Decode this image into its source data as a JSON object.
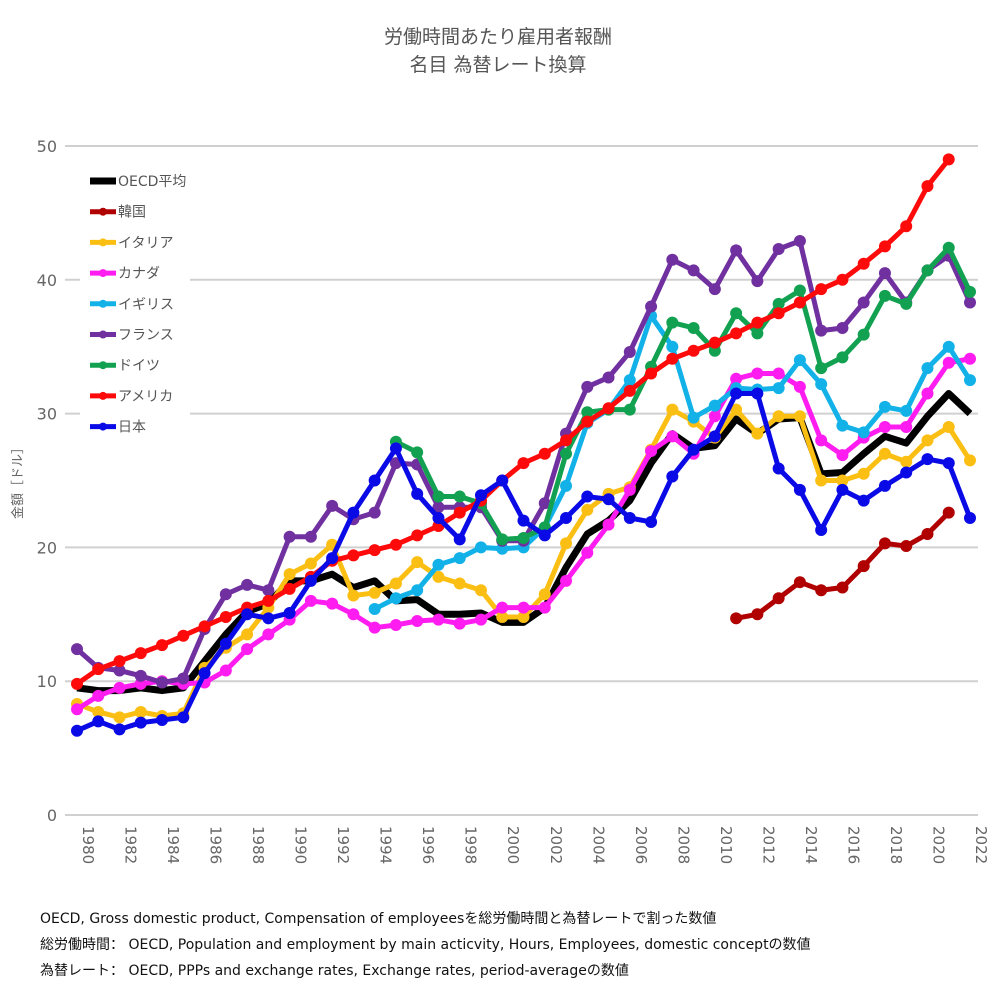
{
  "chart_data": {
    "type": "line",
    "title": "労働時間あたり雇用者報酬",
    "subtitle": "名目 為替レート換算",
    "ylabel": "金額［ドル］",
    "xlabel": "",
    "ylim": [
      0,
      50
    ],
    "yticks": [
      0,
      10,
      20,
      30,
      40,
      50
    ],
    "xlim": [
      1980,
      2022
    ],
    "xticks": [
      1980,
      1982,
      1984,
      1986,
      1988,
      1990,
      1992,
      1994,
      1996,
      1998,
      2000,
      2002,
      2004,
      2006,
      2008,
      2010,
      2012,
      2014,
      2016,
      2018,
      2020,
      2022
    ],
    "grid": true,
    "legend": "top-left",
    "series": [
      {
        "name": "OECD平均",
        "color": "#000000",
        "markers": false,
        "start": 1980,
        "values": [
          9.5,
          9.3,
          9.3,
          9.5,
          9.3,
          9.5,
          11.5,
          13.5,
          15.2,
          15.8,
          17.5,
          17.5,
          18.0,
          17.0,
          17.5,
          16.0,
          16.1,
          15.0,
          15.0,
          15.1,
          14.4,
          14.4,
          15.5,
          18.5,
          21.0,
          22.0,
          23.5,
          26.3,
          28.5,
          27.4,
          27.6,
          29.6,
          28.5,
          29.6,
          29.7,
          25.5,
          25.6,
          27.0,
          28.3,
          27.8,
          29.8,
          31.5,
          30.0
        ]
      },
      {
        "name": "韓国",
        "color": "#b00000",
        "markers": true,
        "start": 2011,
        "values": [
          14.7,
          15.0,
          16.2,
          17.4,
          16.8,
          17.0,
          18.6,
          20.3,
          20.1,
          21.0,
          22.6
        ]
      },
      {
        "name": "イタリア",
        "color": "#fbbf14",
        "markers": true,
        "start": 1980,
        "values": [
          8.3,
          7.7,
          7.3,
          7.7,
          7.4,
          7.6,
          11.0,
          12.5,
          13.5,
          15.5,
          18.0,
          18.8,
          20.2,
          16.4,
          16.6,
          17.3,
          18.9,
          17.8,
          17.3,
          16.8,
          14.8,
          14.8,
          16.5,
          20.3,
          22.8,
          24.0,
          24.5,
          27.3,
          30.3,
          29.4,
          28.2,
          30.3,
          28.5,
          29.8,
          29.8,
          25.0,
          25.0,
          25.5,
          27.0,
          26.4,
          28.0,
          29.0,
          26.5
        ]
      },
      {
        "name": "カナダ",
        "color": "#ff1cf0",
        "markers": true,
        "start": 1980,
        "values": [
          7.9,
          8.9,
          9.5,
          9.8,
          10.0,
          9.8,
          9.9,
          10.8,
          12.4,
          13.5,
          14.6,
          16.0,
          15.8,
          15.0,
          14.0,
          14.2,
          14.5,
          14.6,
          14.3,
          14.6,
          15.5,
          15.5,
          15.5,
          17.5,
          19.6,
          21.7,
          24.3,
          27.2,
          28.3,
          27.0,
          29.8,
          32.6,
          33.0,
          33.0,
          32.0,
          28.0,
          26.9,
          28.2,
          29.0,
          29.0,
          31.5,
          33.8,
          34.1
        ]
      },
      {
        "name": "イギリス",
        "color": "#12b2e8",
        "markers": true,
        "start": 1994,
        "values": [
          15.4,
          16.2,
          16.8,
          18.7,
          19.2,
          20.0,
          19.9,
          20.0,
          21.5,
          24.6,
          29.3,
          30.3,
          32.5,
          37.3,
          35.0,
          29.7,
          30.6,
          31.9,
          31.8,
          31.9,
          34.0,
          32.2,
          29.1,
          28.6,
          30.5,
          30.2,
          33.4,
          35.0,
          32.5
        ]
      },
      {
        "name": "フランス",
        "color": "#7030a0",
        "markers": true,
        "start": 1980,
        "values": [
          12.4,
          11.0,
          10.8,
          10.4,
          9.9,
          10.2,
          13.9,
          16.5,
          17.2,
          16.8,
          20.8,
          20.8,
          23.1,
          22.1,
          22.6,
          26.3,
          26.2,
          23.0,
          23.0,
          23.0,
          20.5,
          20.5,
          23.3,
          28.5,
          32.0,
          32.7,
          34.6,
          38.0,
          41.5,
          40.7,
          39.3,
          42.2,
          39.9,
          42.3,
          42.9,
          36.2,
          36.4,
          38.3,
          40.5,
          38.3,
          40.7,
          41.8,
          38.3
        ]
      },
      {
        "name": "ドイツ",
        "color": "#12a150",
        "markers": true,
        "start": 1995,
        "values": [
          27.9,
          27.1,
          23.8,
          23.8,
          23.3,
          20.6,
          20.7,
          21.5,
          27.0,
          30.1,
          30.3,
          30.3,
          33.5,
          36.8,
          36.4,
          34.7,
          37.5,
          36.0,
          38.2,
          39.2,
          33.4,
          34.2,
          35.9,
          38.8,
          38.2,
          40.7,
          42.4,
          39.1
        ]
      },
      {
        "name": "アメリカ",
        "color": "#ff0a0a",
        "markers": true,
        "start": 1980,
        "values": [
          9.8,
          10.9,
          11.5,
          12.1,
          12.7,
          13.4,
          14.1,
          14.8,
          15.5,
          16.0,
          16.9,
          17.8,
          19.0,
          19.4,
          19.8,
          20.2,
          20.9,
          21.6,
          22.6,
          23.5,
          25.0,
          26.3,
          27.0,
          28.0,
          29.4,
          30.4,
          31.7,
          33.0,
          34.1,
          34.7,
          35.3,
          36.0,
          36.8,
          37.5,
          38.3,
          39.3,
          40.0,
          41.2,
          42.5,
          44.0,
          47.0,
          49.0
        ]
      },
      {
        "name": "日本",
        "color": "#0a0ae6",
        "markers": true,
        "start": 1980,
        "values": [
          6.3,
          7.0,
          6.4,
          6.9,
          7.1,
          7.3,
          10.6,
          12.8,
          15.0,
          14.7,
          15.1,
          17.5,
          19.2,
          22.6,
          25.0,
          27.4,
          24.0,
          22.2,
          20.6,
          23.9,
          25.0,
          22.0,
          20.9,
          22.2,
          23.8,
          23.6,
          22.2,
          21.9,
          25.3,
          27.3,
          28.3,
          31.5,
          31.5,
          25.9,
          24.3,
          21.3,
          24.3,
          23.5,
          24.6,
          25.6,
          26.6,
          26.3,
          22.2
        ]
      }
    ]
  },
  "footnotes": [
    "OECD, Gross domestic product, Compensation of employeesを総労働時間と為替レートで割った数値",
    "総労働時間： OECD, Population and employment by main acticvity, Hours, Employees, domestic conceptの数値",
    "為替レート： OECD, PPPs and exchange rates, Exchange rates, period-averageの数値"
  ]
}
